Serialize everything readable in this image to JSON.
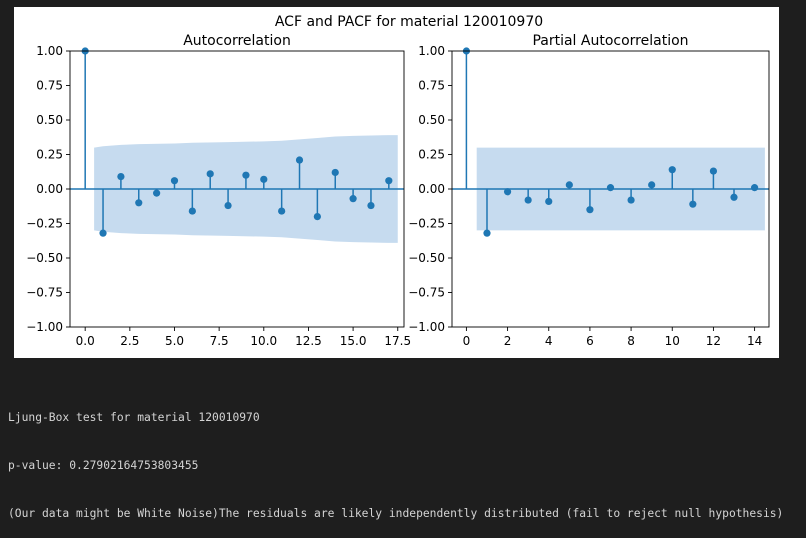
{
  "figure": {
    "suptitle": "ACF and PACF for material 120010970"
  },
  "chart_data": [
    {
      "type": "stem",
      "title": "Autocorrelation",
      "xlabel": "",
      "ylabel": "",
      "xlim": [
        -0.85,
        17.85
      ],
      "ylim": [
        -1.0,
        1.0
      ],
      "xticks": [
        "0.0",
        "2.5",
        "5.0",
        "7.5",
        "10.0",
        "12.5",
        "15.0",
        "17.5"
      ],
      "yticks": [
        "1.00",
        "0.75",
        "0.50",
        "0.25",
        "0.00",
        "−0.25",
        "−0.50",
        "−0.75",
        "−1.00"
      ],
      "lags": [
        0,
        1,
        2,
        3,
        4,
        5,
        6,
        7,
        8,
        9,
        10,
        11,
        12,
        13,
        14,
        15,
        16,
        17
      ],
      "values": [
        1.0,
        -0.32,
        0.09,
        -0.1,
        -0.03,
        0.06,
        -0.16,
        0.11,
        -0.12,
        0.1,
        0.07,
        -0.16,
        0.21,
        -0.2,
        0.12,
        -0.07,
        -0.12,
        0.06
      ],
      "confidence_band": [
        [
          0.5,
          0.3
        ],
        [
          1,
          0.31
        ],
        [
          2,
          0.32
        ],
        [
          3,
          0.325
        ],
        [
          5,
          0.33
        ],
        [
          6,
          0.335
        ],
        [
          8,
          0.34
        ],
        [
          10,
          0.345
        ],
        [
          11,
          0.35
        ],
        [
          12,
          0.36
        ],
        [
          13,
          0.37
        ],
        [
          14,
          0.38
        ],
        [
          15,
          0.385
        ],
        [
          16,
          0.388
        ],
        [
          17,
          0.39
        ],
        [
          17.5,
          0.39
        ]
      ],
      "color": "#1f77b4",
      "band_color": "#c6dbef"
    },
    {
      "type": "stem",
      "title": "Partial Autocorrelation",
      "xlabel": "",
      "ylabel": "",
      "xlim": [
        -0.7,
        14.7
      ],
      "ylim": [
        -1.0,
        1.0
      ],
      "xticks": [
        "0",
        "2",
        "4",
        "6",
        "8",
        "10",
        "12",
        "14"
      ],
      "yticks": [
        "1.00",
        "0.75",
        "0.50",
        "0.25",
        "0.00",
        "−0.25",
        "−0.50",
        "−0.75",
        "−1.00"
      ],
      "lags": [
        0,
        1,
        2,
        3,
        4,
        5,
        6,
        7,
        8,
        9,
        10,
        11,
        12,
        13,
        14
      ],
      "values": [
        1.0,
        -0.32,
        -0.02,
        -0.08,
        -0.09,
        0.03,
        -0.15,
        0.01,
        -0.08,
        0.03,
        0.14,
        -0.11,
        0.13,
        -0.06,
        0.01
      ],
      "confidence_band": [
        [
          0.5,
          0.3
        ],
        [
          14.5,
          0.3
        ]
      ],
      "color": "#1f77b4",
      "band_color": "#c6dbef"
    }
  ],
  "console": {
    "line1": "Ljung-Box test for material 120010970",
    "line2": "p-value: 0.27902164753803455",
    "line3": "(Our data might be White Noise)The residuals are likely independently distributed (fail to reject null hypothesis)"
  }
}
